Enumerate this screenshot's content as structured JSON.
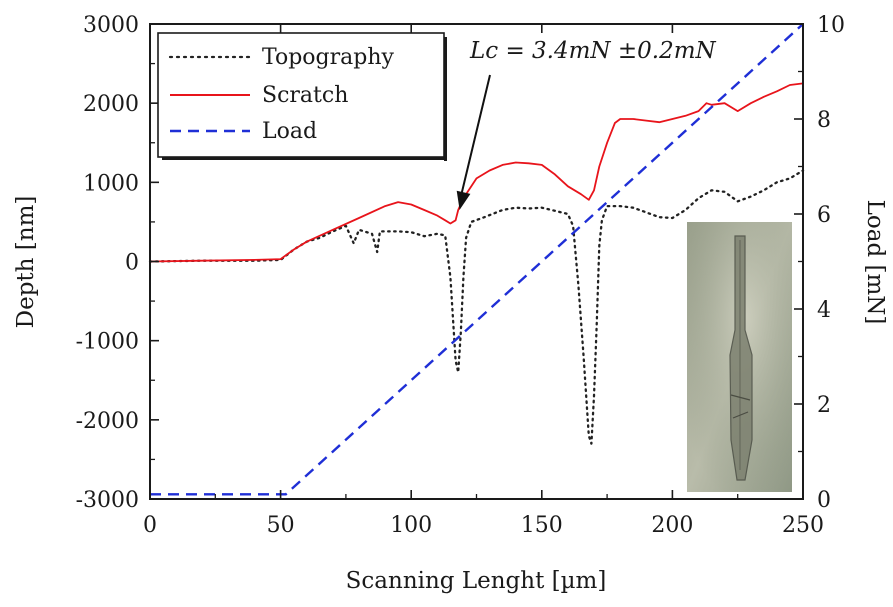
{
  "chart_data": {
    "type": "line",
    "xlabel": "Scanning Lenght [µm]",
    "ylabel_left": "Depth [nm]",
    "ylabel_right": "Load [mN]",
    "xlim": [
      0,
      250
    ],
    "ylim_left": [
      -3000,
      3000
    ],
    "ylim_right": [
      0,
      10
    ],
    "x_ticks": [
      "0",
      "50",
      "100",
      "150",
      "200",
      "250"
    ],
    "y_left_ticks": [
      "-3000",
      "-2000",
      "-1000",
      "0",
      "1000",
      "2000",
      "3000"
    ],
    "y_right_ticks": [
      "0",
      "2",
      "4",
      "6",
      "8",
      "10"
    ],
    "grid": false,
    "legend_position": "top-left",
    "annotation": {
      "text": "Lc = 3.4mN ±0.2mN",
      "points_to": {
        "x": 117,
        "depth": 500
      }
    },
    "has_inset_micrograph": true,
    "series": [
      {
        "name": "Topography",
        "axis": "left",
        "style": "dotted",
        "color": "#222222",
        "points": [
          [
            0,
            0
          ],
          [
            20,
            10
          ],
          [
            40,
            10
          ],
          [
            50,
            20
          ],
          [
            55,
            150
          ],
          [
            60,
            250
          ],
          [
            65,
            300
          ],
          [
            70,
            380
          ],
          [
            75,
            450
          ],
          [
            78,
            230
          ],
          [
            80,
            400
          ],
          [
            85,
            350
          ],
          [
            87,
            120
          ],
          [
            88,
            380
          ],
          [
            95,
            380
          ],
          [
            100,
            370
          ],
          [
            105,
            320
          ],
          [
            110,
            350
          ],
          [
            113,
            330
          ],
          [
            115,
            -200
          ],
          [
            117,
            -1250
          ],
          [
            118,
            -1400
          ],
          [
            119,
            -900
          ],
          [
            120,
            -200
          ],
          [
            121,
            300
          ],
          [
            123,
            500
          ],
          [
            128,
            560
          ],
          [
            135,
            650
          ],
          [
            140,
            680
          ],
          [
            145,
            670
          ],
          [
            150,
            680
          ],
          [
            155,
            640
          ],
          [
            160,
            600
          ],
          [
            162,
            450
          ],
          [
            164,
            -300
          ],
          [
            166,
            -1200
          ],
          [
            168,
            -2200
          ],
          [
            169,
            -2300
          ],
          [
            170,
            -1700
          ],
          [
            171,
            -800
          ],
          [
            172,
            200
          ],
          [
            173,
            520
          ],
          [
            175,
            700
          ],
          [
            180,
            700
          ],
          [
            185,
            680
          ],
          [
            190,
            620
          ],
          [
            195,
            560
          ],
          [
            200,
            550
          ],
          [
            205,
            650
          ],
          [
            210,
            800
          ],
          [
            215,
            900
          ],
          [
            220,
            880
          ],
          [
            225,
            760
          ],
          [
            230,
            820
          ],
          [
            235,
            900
          ],
          [
            240,
            1000
          ],
          [
            245,
            1050
          ],
          [
            250,
            1150
          ]
        ]
      },
      {
        "name": "Scratch",
        "axis": "left",
        "style": "solid",
        "color": "#e8141b",
        "points": [
          [
            0,
            0
          ],
          [
            20,
            10
          ],
          [
            40,
            20
          ],
          [
            50,
            30
          ],
          [
            55,
            150
          ],
          [
            60,
            250
          ],
          [
            70,
            400
          ],
          [
            80,
            550
          ],
          [
            90,
            700
          ],
          [
            95,
            750
          ],
          [
            100,
            720
          ],
          [
            105,
            650
          ],
          [
            110,
            580
          ],
          [
            113,
            520
          ],
          [
            115,
            480
          ],
          [
            117,
            520
          ],
          [
            118,
            650
          ],
          [
            120,
            800
          ],
          [
            125,
            1050
          ],
          [
            130,
            1150
          ],
          [
            135,
            1220
          ],
          [
            140,
            1250
          ],
          [
            145,
            1240
          ],
          [
            150,
            1220
          ],
          [
            155,
            1100
          ],
          [
            160,
            950
          ],
          [
            165,
            850
          ],
          [
            168,
            780
          ],
          [
            170,
            900
          ],
          [
            172,
            1200
          ],
          [
            175,
            1500
          ],
          [
            178,
            1750
          ],
          [
            180,
            1800
          ],
          [
            185,
            1800
          ],
          [
            190,
            1780
          ],
          [
            195,
            1760
          ],
          [
            200,
            1800
          ],
          [
            205,
            1840
          ],
          [
            210,
            1900
          ],
          [
            213,
            2000
          ],
          [
            215,
            1980
          ],
          [
            220,
            2000
          ],
          [
            225,
            1900
          ],
          [
            230,
            2000
          ],
          [
            235,
            2080
          ],
          [
            240,
            2150
          ],
          [
            245,
            2230
          ],
          [
            250,
            2250
          ]
        ]
      },
      {
        "name": "Load",
        "axis": "right",
        "style": "dashed",
        "color": "#1f2fd6",
        "points": [
          [
            0,
            0.1
          ],
          [
            52,
            0.1
          ],
          [
            250,
            10
          ]
        ]
      }
    ]
  }
}
